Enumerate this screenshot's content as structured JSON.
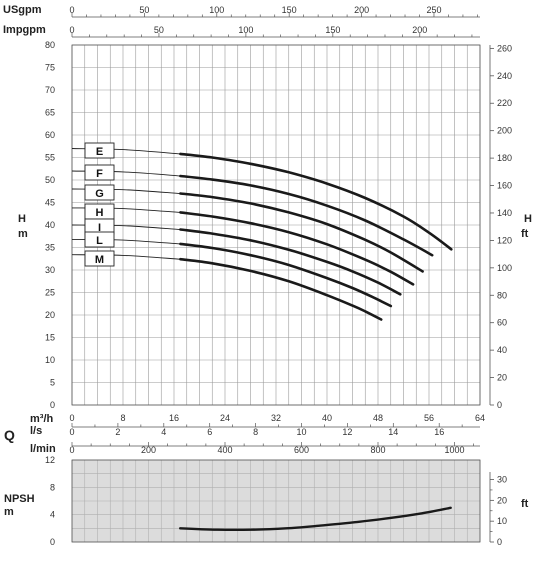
{
  "chart_data": [
    {
      "type": "line",
      "title": "",
      "xlabel": "m³/h",
      "ylabel": "H m",
      "ylabel_right": "H ft",
      "xlim": [
        0,
        64
      ],
      "ylim": [
        0,
        80
      ],
      "ylim_right_ft": [
        0,
        262.5
      ],
      "x_ticks": [
        0,
        8,
        16,
        24,
        32,
        40,
        48,
        56,
        64
      ],
      "y_ticks": [
        0,
        5,
        10,
        15,
        20,
        25,
        30,
        35,
        40,
        45,
        50,
        55,
        60,
        65,
        70,
        75,
        80
      ],
      "y_ticks_right": [
        0,
        20,
        40,
        60,
        80,
        100,
        120,
        140,
        160,
        180,
        200,
        220,
        240,
        260
      ],
      "grid": true,
      "top_axes": [
        {
          "label": "USgpm",
          "ticks": [
            0,
            50,
            100,
            150,
            200,
            250
          ],
          "per_m3h": 4.4029
        },
        {
          "label": "Impgpm",
          "ticks": [
            0,
            50,
            100,
            150,
            200
          ],
          "per_m3h": 3.6662
        }
      ],
      "bottom_axes": [
        {
          "label": "l/s",
          "ticks": [
            0,
            2,
            4,
            6,
            8,
            10,
            12,
            14,
            16
          ],
          "per_m3h": 0.27778
        },
        {
          "label": "l/min",
          "ticks": [
            0,
            200,
            400,
            600,
            800,
            1000
          ],
          "per_m3h": 16.6667
        }
      ],
      "symbol_main": "Q",
      "series": [
        {
          "name": "E",
          "dashed_from_zero": true,
          "x": [
            17,
            22,
            28,
            34,
            40,
            46,
            52,
            56,
            59.5
          ],
          "y": [
            55.8,
            55.0,
            53.6,
            51.7,
            49.2,
            46.0,
            41.9,
            38.3,
            34.6
          ]
        },
        {
          "name": "F",
          "dashed_from_zero": true,
          "x": [
            17,
            22,
            28,
            34,
            40,
            46,
            52,
            56.5
          ],
          "y": [
            50.9,
            50.1,
            48.8,
            46.9,
            44.3,
            41.0,
            36.8,
            33.3
          ]
        },
        {
          "name": "G",
          "dashed_from_zero": true,
          "x": [
            17,
            22,
            28,
            34,
            40,
            46,
            50,
            55
          ],
          "y": [
            47.0,
            46.2,
            44.8,
            42.8,
            40.2,
            36.7,
            33.9,
            29.7
          ]
        },
        {
          "name": "H",
          "dashed_from_zero": true,
          "x": [
            17,
            22,
            28,
            34,
            40,
            46,
            50,
            53.5
          ],
          "y": [
            42.8,
            41.9,
            40.4,
            38.4,
            35.7,
            32.3,
            29.6,
            26.8
          ]
        },
        {
          "name": "I",
          "dashed_from_zero": true,
          "x": [
            17,
            22,
            28,
            34,
            40,
            44,
            48,
            51.5
          ],
          "y": [
            39.0,
            38.1,
            36.6,
            34.5,
            31.8,
            29.7,
            27.2,
            24.6
          ]
        },
        {
          "name": "L",
          "dashed_from_zero": true,
          "x": [
            17,
            22,
            28,
            34,
            40,
            44,
            47,
            50
          ],
          "y": [
            35.8,
            34.9,
            33.3,
            31.1,
            28.2,
            26.0,
            24.1,
            22.0
          ]
        },
        {
          "name": "M",
          "dashed_from_zero": true,
          "x": [
            17,
            22,
            28,
            34,
            40,
            44,
            46,
            48.5
          ],
          "y": [
            32.4,
            31.5,
            29.8,
            27.5,
            24.4,
            22.1,
            20.8,
            19.0
          ]
        }
      ],
      "start_heads": {
        "E": 57.0,
        "F": 52.0,
        "G": 48.0,
        "H": 43.8,
        "I": 40.0,
        "L": 36.8,
        "M": 33.4
      }
    },
    {
      "type": "line",
      "title": "",
      "xlabel": "l/min",
      "ylabel": "NPSH m",
      "ylabel_right": "ft",
      "xlim": [
        0,
        1066.7
      ],
      "ylim": [
        0,
        12
      ],
      "y_ticks": [
        0,
        4,
        8,
        12
      ],
      "y_ticks_right": [
        0,
        10,
        20,
        30
      ],
      "grid": true,
      "series": [
        {
          "name": "",
          "x": [
            283,
            380,
            470,
            560,
            650,
            740,
            830,
            915,
            990
          ],
          "y": [
            2.0,
            1.8,
            1.8,
            2.0,
            2.4,
            2.9,
            3.5,
            4.2,
            5.0
          ]
        }
      ]
    }
  ],
  "labels": {
    "usgpm": "USgpm",
    "impgpm": "Impgpm",
    "h_left_1": "H",
    "h_left_2": "m",
    "h_right_1": "H",
    "h_right_2": "ft",
    "m3h": "m³/h",
    "ls": "l/s",
    "lmin": "l/min",
    "q": "Q",
    "npsh_1": "NPSH",
    "npsh_2": "m",
    "npsh_ft": "ft"
  }
}
